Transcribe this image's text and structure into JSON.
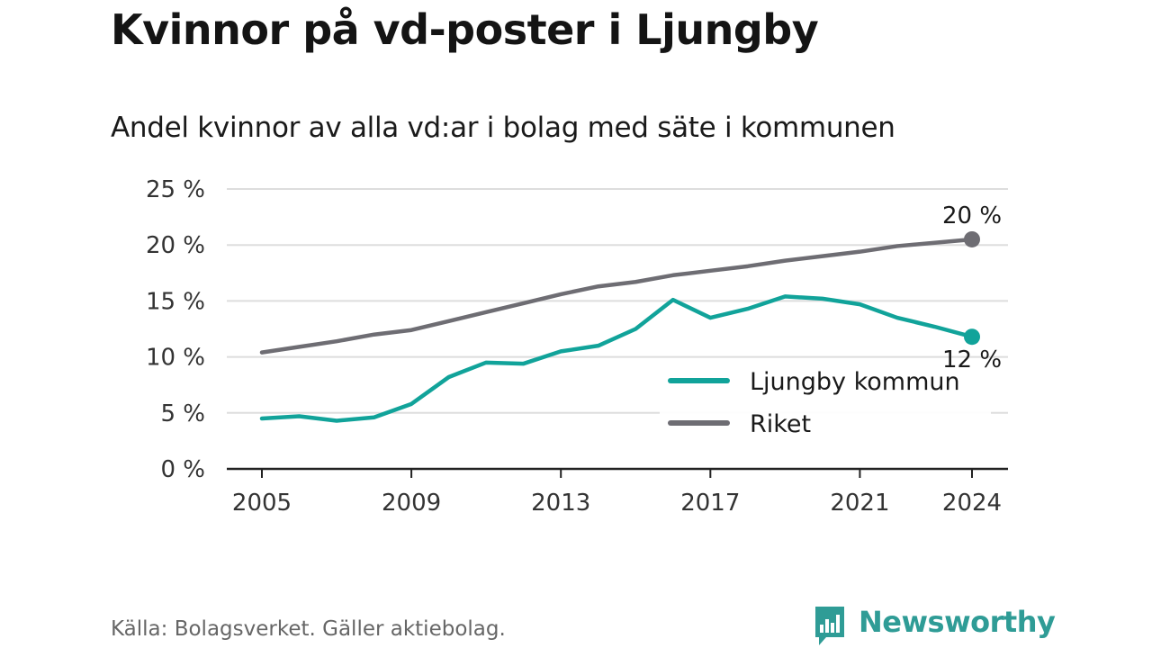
{
  "title": "Kvinnor på vd-poster i Ljungby",
  "subtitle": "Andel kvinnor av alla vd:ar i bolag med säte i kommunen",
  "source": "Källa: Bolagsverket. Gäller aktiebolag.",
  "brand": {
    "name": "Newsworthy",
    "icon": "newsworthy-logo-icon",
    "color": "#2f9c96"
  },
  "chart_data": {
    "type": "line",
    "x": [
      2005,
      2006,
      2007,
      2008,
      2009,
      2010,
      2011,
      2012,
      2013,
      2014,
      2015,
      2016,
      2017,
      2018,
      2019,
      2020,
      2021,
      2022,
      2023,
      2024
    ],
    "x_ticks": [
      "2005",
      "2009",
      "2013",
      "2017",
      "2021",
      "2024"
    ],
    "y_ticks": [
      "0 %",
      "5 %",
      "10 %",
      "15 %",
      "20 %",
      "25 %"
    ],
    "ylim": [
      0,
      25
    ],
    "grid": true,
    "legend_position": "bottom-right",
    "series": [
      {
        "name": "Ljungby kommun",
        "color": "#11a39a",
        "values": [
          4.5,
          4.7,
          4.3,
          4.6,
          5.8,
          8.2,
          9.5,
          9.4,
          10.5,
          11.0,
          12.5,
          15.1,
          13.5,
          14.3,
          15.4,
          15.2,
          14.7,
          13.5,
          12.7,
          11.8
        ],
        "end_label": "12 %"
      },
      {
        "name": "Riket",
        "color": "#6e6d73",
        "values": [
          10.4,
          10.9,
          11.4,
          12.0,
          12.4,
          13.2,
          14.0,
          14.8,
          15.6,
          16.3,
          16.7,
          17.3,
          17.7,
          18.1,
          18.6,
          19.0,
          19.4,
          19.9,
          20.2,
          20.5
        ],
        "end_label": "20 %"
      }
    ]
  }
}
